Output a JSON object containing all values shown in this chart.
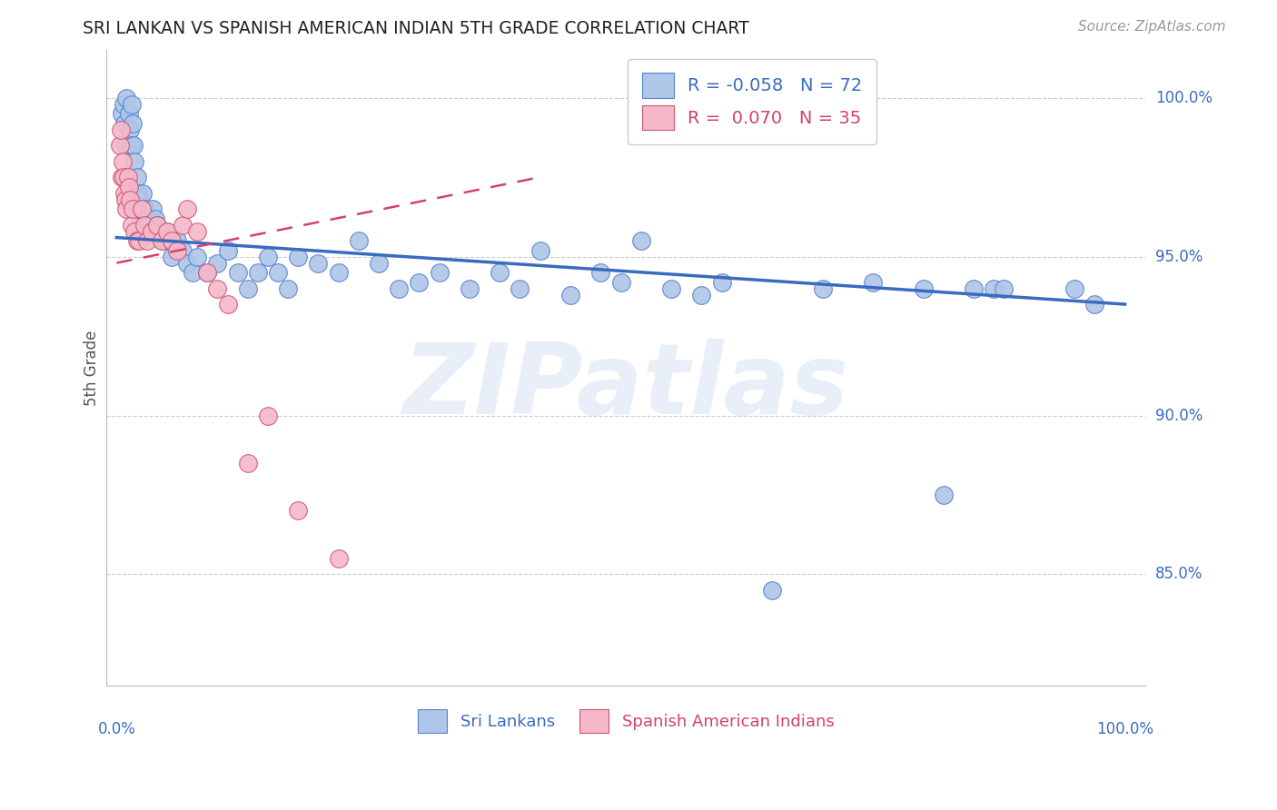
{
  "title": "SRI LANKAN VS SPANISH AMERICAN INDIAN 5TH GRADE CORRELATION CHART",
  "source": "Source: ZipAtlas.com",
  "ylabel": "5th Grade",
  "blue_color": "#aec6e8",
  "pink_color": "#f5b8c8",
  "blue_line_color": "#3a6bbf",
  "pink_line_color": "#d44070",
  "blue_edge_color": "#5580cc",
  "pink_edge_color": "#cc5577",
  "watermark": "ZIPatlas",
  "legend_line1": "R = -0.058   N = 72",
  "legend_line2": "R =  0.070   N = 35",
  "legend_label1": "Sri Lankans",
  "legend_label2": "Spanish American Indians",
  "ytick_labels": [
    "100.0%",
    "95.0%",
    "90.0%",
    "85.0%"
  ],
  "ytick_vals": [
    1.0,
    0.95,
    0.9,
    0.85
  ],
  "xlim": [
    -0.01,
    1.02
  ],
  "ylim": [
    0.815,
    1.015
  ],
  "blue_x": [
    0.005,
    0.007,
    0.008,
    0.009,
    0.01,
    0.012,
    0.013,
    0.014,
    0.015,
    0.016,
    0.017,
    0.018,
    0.02,
    0.021,
    0.022,
    0.023,
    0.025,
    0.026,
    0.028,
    0.03,
    0.032,
    0.034,
    0.036,
    0.038,
    0.04,
    0.043,
    0.046,
    0.05,
    0.055,
    0.06,
    0.065,
    0.07,
    0.075,
    0.08,
    0.09,
    0.1,
    0.11,
    0.12,
    0.13,
    0.14,
    0.15,
    0.16,
    0.17,
    0.18,
    0.2,
    0.22,
    0.24,
    0.26,
    0.28,
    0.3,
    0.32,
    0.35,
    0.38,
    0.4,
    0.42,
    0.45,
    0.48,
    0.5,
    0.52,
    0.55,
    0.58,
    0.6,
    0.65,
    0.7,
    0.75,
    0.8,
    0.82,
    0.85,
    0.87,
    0.88,
    0.95,
    0.97
  ],
  "blue_y": [
    0.995,
    0.998,
    0.992,
    0.985,
    1.0,
    0.995,
    0.99,
    0.985,
    0.998,
    0.992,
    0.985,
    0.98,
    0.975,
    0.97,
    0.968,
    0.965,
    0.96,
    0.97,
    0.965,
    0.962,
    0.96,
    0.958,
    0.965,
    0.962,
    0.96,
    0.957,
    0.955,
    0.958,
    0.95,
    0.955,
    0.952,
    0.948,
    0.945,
    0.95,
    0.945,
    0.948,
    0.952,
    0.945,
    0.94,
    0.945,
    0.95,
    0.945,
    0.94,
    0.95,
    0.948,
    0.945,
    0.955,
    0.948,
    0.94,
    0.942,
    0.945,
    0.94,
    0.945,
    0.94,
    0.952,
    0.938,
    0.945,
    0.942,
    0.955,
    0.94,
    0.938,
    0.942,
    0.845,
    0.94,
    0.942,
    0.94,
    0.875,
    0.94,
    0.94,
    0.94,
    0.94,
    0.935
  ],
  "pink_x": [
    0.003,
    0.004,
    0.005,
    0.006,
    0.007,
    0.008,
    0.009,
    0.01,
    0.011,
    0.012,
    0.013,
    0.015,
    0.016,
    0.018,
    0.02,
    0.022,
    0.025,
    0.028,
    0.03,
    0.035,
    0.04,
    0.045,
    0.05,
    0.055,
    0.06,
    0.065,
    0.07,
    0.08,
    0.09,
    0.1,
    0.11,
    0.13,
    0.15,
    0.18,
    0.22
  ],
  "pink_y": [
    0.985,
    0.99,
    0.975,
    0.98,
    0.975,
    0.97,
    0.968,
    0.965,
    0.975,
    0.972,
    0.968,
    0.96,
    0.965,
    0.958,
    0.955,
    0.955,
    0.965,
    0.96,
    0.955,
    0.958,
    0.96,
    0.955,
    0.958,
    0.955,
    0.952,
    0.96,
    0.965,
    0.958,
    0.945,
    0.94,
    0.935,
    0.885,
    0.9,
    0.87,
    0.855
  ],
  "blue_line_x": [
    0.0,
    1.0
  ],
  "blue_line_y": [
    0.956,
    0.935
  ],
  "pink_line_x": [
    0.0,
    0.42
  ],
  "pink_line_y": [
    0.948,
    0.975
  ]
}
